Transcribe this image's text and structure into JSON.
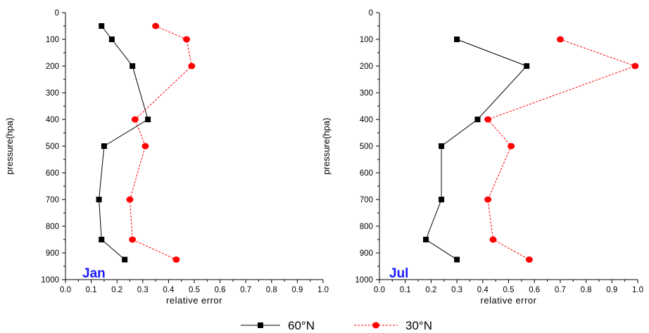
{
  "chart_data": [
    {
      "type": "line",
      "annotation": "Jan",
      "xlabel": "relative error",
      "ylabel": "pressure(hpa)",
      "xlim": [
        0.0,
        1.0
      ],
      "ylim": [
        0,
        1000
      ],
      "y_inverted": true,
      "xticks": [
        "0.0",
        "0.1",
        "0.2",
        "0.3",
        "0.4",
        "0.5",
        "0.6",
        "0.7",
        "0.8",
        "0.9",
        "1.0"
      ],
      "yticks": [
        "0",
        "100",
        "200",
        "300",
        "400",
        "500",
        "600",
        "700",
        "800",
        "900",
        "1000"
      ],
      "series": [
        {
          "name": "60°N",
          "color": "#000000",
          "marker": "square",
          "line": "solid",
          "x": [
            0.14,
            0.18,
            0.26,
            0.32,
            0.15,
            0.13,
            0.14,
            0.23
          ],
          "y": [
            50,
            100,
            200,
            400,
            500,
            700,
            850,
            925
          ]
        },
        {
          "name": "30°N",
          "color": "#ff0000",
          "marker": "circle",
          "line": "dashed",
          "x": [
            0.35,
            0.47,
            0.49,
            0.27,
            0.31,
            0.25,
            0.26,
            0.43
          ],
          "y": [
            50,
            100,
            200,
            400,
            500,
            700,
            850,
            925
          ]
        }
      ]
    },
    {
      "type": "line",
      "annotation": "Jul",
      "xlabel": "relative error",
      "ylabel": "pressure(hpa)",
      "xlim": [
        0.0,
        1.0
      ],
      "ylim": [
        0,
        1000
      ],
      "y_inverted": true,
      "xticks": [
        "0.0",
        "0.1",
        "0.2",
        "0.3",
        "0.4",
        "0.5",
        "0.6",
        "0.7",
        "0.8",
        "0.9",
        "1.0"
      ],
      "yticks": [
        "0",
        "100",
        "200",
        "300",
        "400",
        "500",
        "600",
        "700",
        "800",
        "900",
        "1000"
      ],
      "series": [
        {
          "name": "60°N",
          "color": "#000000",
          "marker": "square",
          "line": "solid",
          "x": [
            0.3,
            0.57,
            0.38,
            0.24,
            0.24,
            0.18,
            0.3
          ],
          "y": [
            100,
            200,
            400,
            500,
            700,
            850,
            925
          ]
        },
        {
          "name": "30°N",
          "color": "#ff0000",
          "marker": "circle",
          "line": "dashed",
          "x": [
            0.7,
            0.99,
            0.42,
            0.51,
            0.42,
            0.44,
            0.58
          ],
          "y": [
            100,
            200,
            400,
            500,
            700,
            850,
            925
          ]
        }
      ]
    }
  ],
  "legend": {
    "items": [
      {
        "label": "60°N",
        "color": "#000000",
        "marker": "square",
        "line": "solid"
      },
      {
        "label": "30°N",
        "color": "#ff0000",
        "marker": "circle",
        "line": "dashed"
      }
    ]
  }
}
